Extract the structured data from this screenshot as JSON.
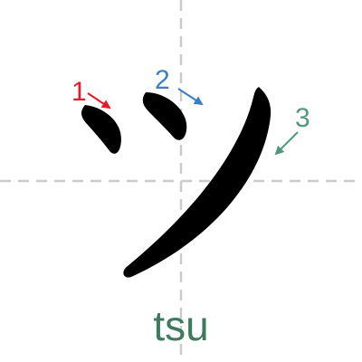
{
  "character": {
    "kana": "ツ",
    "romaji": "tsu",
    "romaji_color": "#3e7a5e",
    "stroke_color": "#000000"
  },
  "guides": {
    "color": "#cccccc",
    "style": "dashed"
  },
  "strokes": [
    {
      "number": "1",
      "color": "#e8192c"
    },
    {
      "number": "2",
      "color": "#3a7fc4"
    },
    {
      "number": "3",
      "color": "#4f9a7d"
    }
  ]
}
